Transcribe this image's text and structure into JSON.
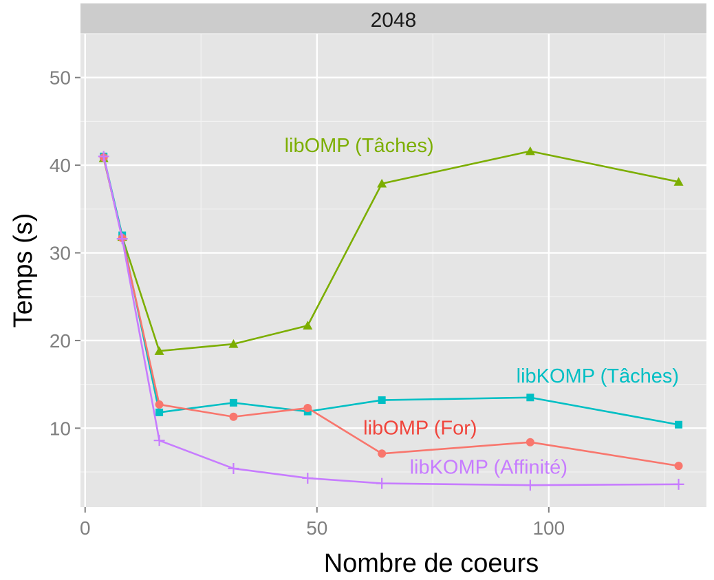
{
  "chart_data": {
    "type": "line",
    "panel_title": "2048",
    "xlabel": "Nombre de coeurs",
    "ylabel": "Temps (s)",
    "xlim": [
      -1,
      134
    ],
    "ylim": [
      1,
      55
    ],
    "x_ticks": [
      0,
      50,
      100
    ],
    "y_ticks": [
      10,
      20,
      30,
      40,
      50
    ],
    "grid": true,
    "legend": "none (direct labels)",
    "x": [
      4,
      8,
      16,
      32,
      48,
      64,
      96,
      128
    ],
    "series": [
      {
        "name": "libOMP (Tâches)",
        "color": "#7CAE00",
        "marker": "triangle",
        "values": [
          40.8,
          31.8,
          18.8,
          19.6,
          21.7,
          37.9,
          41.6,
          38.1
        ]
      },
      {
        "name": "libKOMP (Tâches)",
        "color": "#00BFC4",
        "marker": "square",
        "values": [
          41.0,
          32.0,
          11.8,
          12.9,
          11.9,
          13.2,
          13.5,
          10.4
        ]
      },
      {
        "name": "libOMP (For)",
        "color": "#F8766D",
        "marker": "circle",
        "values": [
          40.9,
          31.7,
          12.7,
          11.3,
          12.3,
          7.1,
          8.4,
          5.7
        ]
      },
      {
        "name": "libKOMP (Affinité)",
        "color": "#C77CFF",
        "marker": "plus",
        "values": [
          41.0,
          31.6,
          8.6,
          5.4,
          4.3,
          3.7,
          3.5,
          3.6
        ]
      }
    ],
    "annotations": [
      {
        "text": "libOMP (Tâches)",
        "color": "#7CAE00",
        "x": 43,
        "y": 41.5,
        "anchor": "start"
      },
      {
        "text": "libKOMP (Tâches)",
        "color": "#00BFC4",
        "x": 93,
        "y": 15.2,
        "anchor": "start"
      },
      {
        "text": "libOMP (For)",
        "color": "#F0453C",
        "x": 60,
        "y": 9.3,
        "anchor": "start"
      },
      {
        "text": "libKOMP (Affinité)",
        "color": "#C77CFF",
        "x": 70,
        "y": 4.8,
        "anchor": "start"
      }
    ]
  }
}
